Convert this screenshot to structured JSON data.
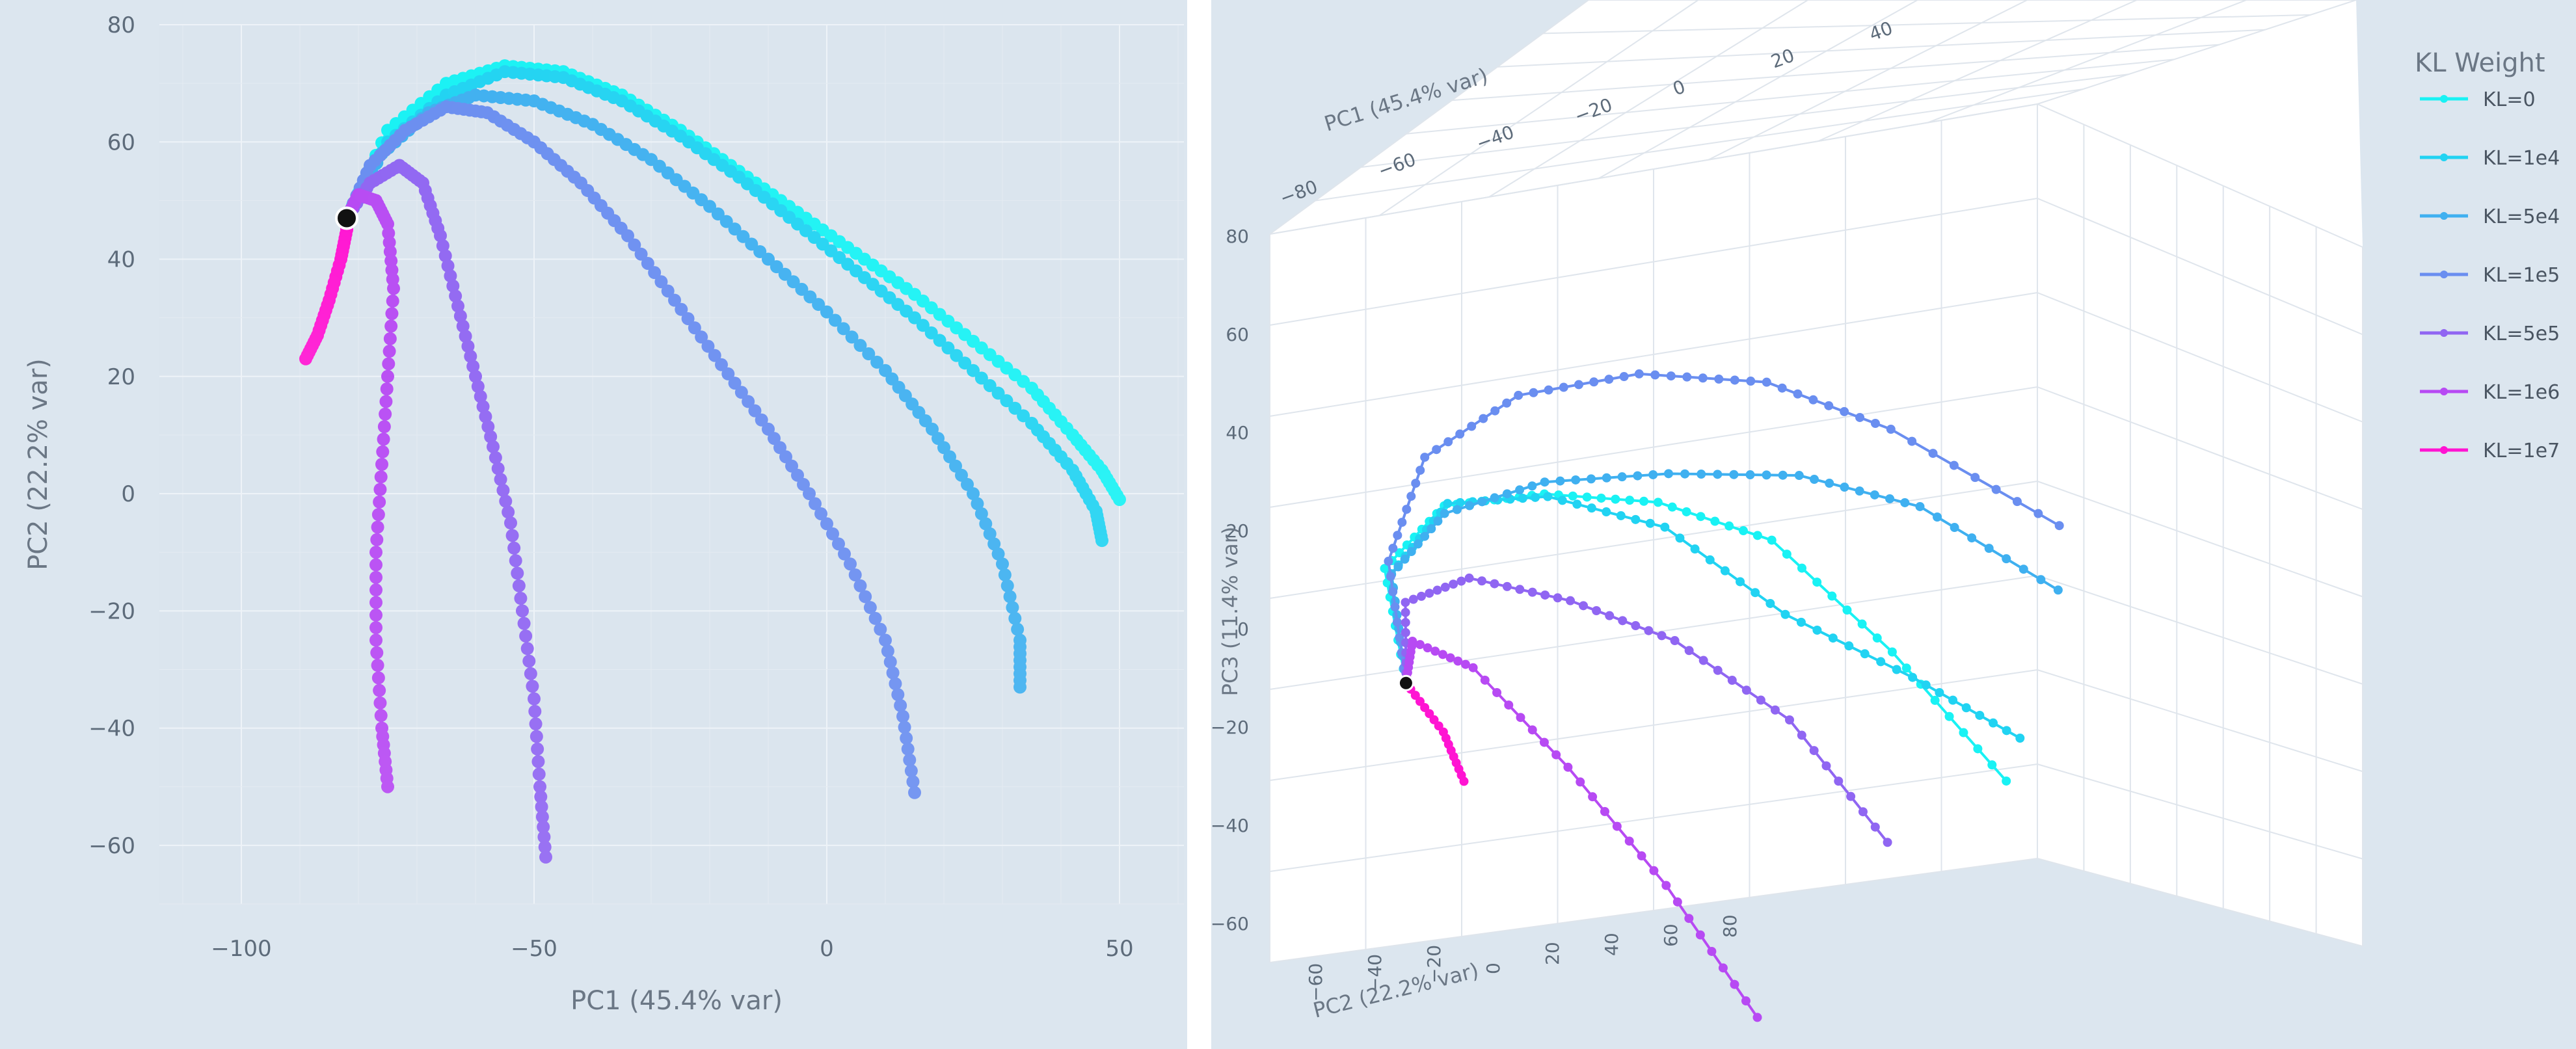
{
  "legend": {
    "title": "KL Weight",
    "entries": [
      {
        "label": "KL=0",
        "color": "#19f2f4"
      },
      {
        "label": "KL=1e4",
        "color": "#21d3f2"
      },
      {
        "label": "KL=5e4",
        "color": "#3fb0f0"
      },
      {
        "label": "KL=1e5",
        "color": "#6a8ef0"
      },
      {
        "label": "KL=5e5",
        "color": "#9066f2"
      },
      {
        "label": "KL=1e6",
        "color": "#b74af3"
      },
      {
        "label": "KL=1e7",
        "color": "#ff14d2"
      }
    ]
  },
  "chart_data": [
    {
      "type": "scatter",
      "mode": "lines+markers",
      "xlabel": "PC1 (45.4% var)",
      "ylabel": "PC2 (22.2% var)",
      "xlim": [
        -114,
        61
      ],
      "ylim": [
        -70,
        80
      ],
      "xticks": [
        -100,
        -50,
        0,
        50
      ],
      "yticks": [
        -60,
        -40,
        -20,
        0,
        20,
        40,
        60,
        80
      ],
      "grid": true,
      "start_point": [
        -82,
        47
      ],
      "series": [
        {
          "name": "KL=0",
          "color": "#19f2f4",
          "points": [
            [
              -82,
              47
            ],
            [
              -75,
              62
            ],
            [
              -65,
              70
            ],
            [
              -55,
              73
            ],
            [
              -45,
              72
            ],
            [
              -35,
              68
            ],
            [
              -25,
              62
            ],
            [
              -15,
              55
            ],
            [
              -5,
              48
            ],
            [
              5,
              41
            ],
            [
              15,
              34
            ],
            [
              25,
              26
            ],
            [
              35,
              18
            ],
            [
              42,
              10
            ],
            [
              47,
              4
            ],
            [
              50,
              -1
            ]
          ]
        },
        {
          "name": "KL=1e4",
          "color": "#21d3f2",
          "points": [
            [
              -82,
              47
            ],
            [
              -75,
              60
            ],
            [
              -65,
              68
            ],
            [
              -55,
              72
            ],
            [
              -45,
              71
            ],
            [
              -35,
              67
            ],
            [
              -25,
              61
            ],
            [
              -15,
              54
            ],
            [
              -5,
              46
            ],
            [
              5,
              38
            ],
            [
              15,
              30
            ],
            [
              25,
              21
            ],
            [
              35,
              12
            ],
            [
              42,
              4
            ],
            [
              46,
              -3
            ],
            [
              47,
              -8
            ]
          ]
        },
        {
          "name": "KL=5e4",
          "color": "#3fb0f0",
          "points": [
            [
              -82,
              47
            ],
            [
              -76,
              58
            ],
            [
              -68,
              65
            ],
            [
              -60,
              68
            ],
            [
              -50,
              67
            ],
            [
              -40,
              63
            ],
            [
              -30,
              57
            ],
            [
              -20,
              49
            ],
            [
              -10,
              40
            ],
            [
              0,
              31
            ],
            [
              10,
              21
            ],
            [
              18,
              11
            ],
            [
              25,
              0
            ],
            [
              30,
              -12
            ],
            [
              33,
              -25
            ],
            [
              33,
              -33
            ]
          ]
        },
        {
          "name": "KL=1e5",
          "color": "#6a8ef0",
          "points": [
            [
              -82,
              47
            ],
            [
              -78,
              56
            ],
            [
              -72,
              62
            ],
            [
              -65,
              66
            ],
            [
              -58,
              65
            ],
            [
              -50,
              60
            ],
            [
              -42,
              53
            ],
            [
              -34,
              44
            ],
            [
              -26,
              33
            ],
            [
              -18,
              22
            ],
            [
              -10,
              11
            ],
            [
              -3,
              0
            ],
            [
              4,
              -12
            ],
            [
              10,
              -25
            ],
            [
              13,
              -38
            ],
            [
              15,
              -51
            ]
          ]
        },
        {
          "name": "KL=5e5",
          "color": "#9066f2",
          "points": [
            [
              -82,
              47
            ],
            [
              -78,
              53
            ],
            [
              -73,
              56
            ],
            [
              -69,
              53
            ],
            [
              -66,
              44
            ],
            [
              -63,
              32
            ],
            [
              -60,
              20
            ],
            [
              -57,
              8
            ],
            [
              -54,
              -5
            ],
            [
              -52,
              -20
            ],
            [
              -50,
              -35
            ],
            [
              -49,
              -50
            ],
            [
              -48,
              -62
            ]
          ]
        },
        {
          "name": "KL=1e6",
          "color": "#b74af3",
          "points": [
            [
              -82,
              47
            ],
            [
              -80,
              51
            ],
            [
              -77,
              50
            ],
            [
              -75,
              46
            ],
            [
              -74,
              35
            ],
            [
              -75,
              20
            ],
            [
              -76,
              5
            ],
            [
              -77,
              -10
            ],
            [
              -77,
              -25
            ],
            [
              -76,
              -40
            ],
            [
              -75,
              -50
            ]
          ]
        },
        {
          "name": "KL=1e7",
          "color": "#ff14d2",
          "points": [
            [
              -82,
              47
            ],
            [
              -82,
              45
            ],
            [
              -83,
              40
            ],
            [
              -85,
              33
            ],
            [
              -87,
              27
            ],
            [
              -89,
              23
            ]
          ]
        }
      ]
    },
    {
      "type": "scatter3d",
      "mode": "lines+markers",
      "xlabel": "PC1 (45.4% var)",
      "ylabel": "PC2 (22.2% var)",
      "zlabel": "PC3 (11.4% var)",
      "xticks": [
        -80,
        -60,
        -40,
        -20,
        0,
        20,
        40
      ],
      "yticks": [
        -60,
        -40,
        -20,
        0,
        20,
        40,
        60,
        80
      ],
      "zticks": [
        -60,
        -40,
        -20,
        0,
        20,
        40,
        60,
        80
      ],
      "grid": true,
      "start_point": [
        -82,
        47,
        -10
      ],
      "series": [
        {
          "name": "KL=0",
          "color": "#19f2f4",
          "points": [
            [
              -82,
              47,
              -10
            ],
            [
              -65,
              70,
              -2
            ],
            [
              -45,
              72,
              6
            ],
            [
              -25,
              62,
              10
            ],
            [
              -5,
              48,
              12
            ],
            [
              15,
              34,
              8
            ],
            [
              35,
              18,
              -10
            ],
            [
              50,
              -1,
              -29
            ]
          ]
        },
        {
          "name": "KL=1e4",
          "color": "#21d3f2",
          "points": [
            [
              -82,
              47,
              -10
            ],
            [
              -65,
              68,
              -2
            ],
            [
              -45,
              71,
              7
            ],
            [
              -25,
              61,
              10
            ],
            [
              -5,
              46,
              8
            ],
            [
              15,
              30,
              -5
            ],
            [
              35,
              12,
              -12
            ],
            [
              47,
              -8,
              -16
            ]
          ]
        },
        {
          "name": "KL=5e4",
          "color": "#3fb0f0",
          "points": [
            [
              -82,
              47,
              -10
            ],
            [
              -68,
              65,
              0
            ],
            [
              -50,
              67,
              8
            ],
            [
              -30,
              57,
              16
            ],
            [
              -10,
              40,
              23
            ],
            [
              10,
              21,
              29
            ],
            [
              25,
              0,
              31
            ],
            [
              33,
              -33,
              30
            ]
          ]
        },
        {
          "name": "KL=1e5",
          "color": "#6a8ef0",
          "points": [
            [
              -82,
              47,
              -10
            ],
            [
              -72,
              62,
              5
            ],
            [
              -58,
              65,
              22
            ],
            [
              -42,
              53,
              38
            ],
            [
              -26,
              33,
              50
            ],
            [
              -10,
              11,
              57
            ],
            [
              4,
              -12,
              57
            ],
            [
              15,
              -51,
              56
            ]
          ]
        },
        {
          "name": "KL=5e5",
          "color": "#9066f2",
          "points": [
            [
              -82,
              47,
              -10
            ],
            [
              -73,
              56,
              0
            ],
            [
              -66,
              44,
              10
            ],
            [
              -60,
              20,
              17
            ],
            [
              -54,
              -5,
              21
            ],
            [
              -50,
              -35,
              20
            ],
            [
              -48,
              -62,
              9
            ]
          ]
        },
        {
          "name": "KL=1e6",
          "color": "#b74af3",
          "points": [
            [
              -82,
              47,
              -10
            ],
            [
              -77,
              50,
              -4
            ],
            [
              -74,
              35,
              -2
            ],
            [
              -76,
              5,
              -6
            ],
            [
              -77,
              -25,
              -14
            ],
            [
              -75,
              -50,
              -28
            ]
          ]
        },
        {
          "name": "KL=1e7",
          "color": "#ff14d2",
          "points": [
            [
              -82,
              47,
              -10
            ],
            [
              -85,
              33,
              -12
            ],
            [
              -89,
              23,
              -16
            ]
          ]
        }
      ]
    }
  ]
}
